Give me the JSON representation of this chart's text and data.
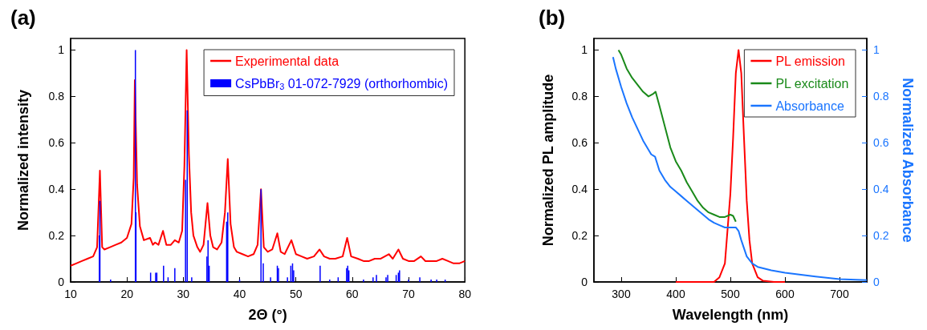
{
  "chart_data": [
    {
      "type": "line",
      "title": "(a)",
      "xlabel": "2Θ (°)",
      "ylabel": "Normalized intensity",
      "xlim": [
        10,
        80
      ],
      "xticks": [
        10,
        20,
        30,
        40,
        50,
        60,
        70,
        80
      ],
      "ylim": [
        0,
        1.05
      ],
      "yticks": [
        0,
        0.2,
        0.4,
        0.6,
        0.8,
        1
      ],
      "legend": "top right",
      "grid": false,
      "marker": "none",
      "series": [
        {
          "name": "Experimental data",
          "color": "#ff0000",
          "x": [
            10,
            11,
            12,
            13,
            14,
            14.7,
            15.2,
            15.6,
            16,
            17,
            18,
            19,
            20,
            20.8,
            21.2,
            21.4,
            21.8,
            22.3,
            23,
            24.1,
            24.6,
            25,
            25.6,
            26.4,
            27,
            27.8,
            28.5,
            29.2,
            29.8,
            30.2,
            30.6,
            31,
            31.4,
            31.8,
            32.5,
            33,
            33.6,
            34.3,
            34.8,
            35.3,
            36,
            36.8,
            37.4,
            37.9,
            38.4,
            39,
            39.5,
            40.5,
            41.5,
            42.5,
            43.2,
            43.8,
            44.3,
            45,
            45.8,
            46.7,
            47.3,
            48,
            49.2,
            50,
            51,
            52,
            53.2,
            54.2,
            55,
            56,
            57,
            58.3,
            59.1,
            59.8,
            61,
            62,
            63,
            64,
            65,
            66.5,
            67.2,
            68.2,
            69,
            70,
            71,
            72.2,
            73,
            74,
            75,
            76,
            77,
            78,
            79,
            80
          ],
          "values": [
            0.07,
            0.08,
            0.09,
            0.1,
            0.11,
            0.15,
            0.48,
            0.15,
            0.14,
            0.15,
            0.16,
            0.17,
            0.19,
            0.25,
            0.45,
            0.87,
            0.42,
            0.24,
            0.18,
            0.19,
            0.16,
            0.17,
            0.16,
            0.22,
            0.16,
            0.16,
            0.18,
            0.17,
            0.22,
            0.5,
            1.0,
            0.55,
            0.3,
            0.2,
            0.15,
            0.13,
            0.16,
            0.34,
            0.2,
            0.15,
            0.14,
            0.17,
            0.3,
            0.53,
            0.25,
            0.15,
            0.13,
            0.12,
            0.11,
            0.12,
            0.16,
            0.4,
            0.15,
            0.13,
            0.14,
            0.21,
            0.13,
            0.12,
            0.18,
            0.12,
            0.11,
            0.1,
            0.11,
            0.14,
            0.11,
            0.1,
            0.1,
            0.11,
            0.19,
            0.11,
            0.1,
            0.09,
            0.09,
            0.1,
            0.1,
            0.12,
            0.1,
            0.14,
            0.1,
            0.09,
            0.09,
            0.11,
            0.09,
            0.09,
            0.09,
            0.1,
            0.09,
            0.08,
            0.08,
            0.09
          ]
        },
        {
          "name": "CsPbBr$_{3}$ 01-072-7929 (orthorhombic)",
          "type": "bar",
          "color": "#0000ff",
          "x": [
            15.1,
            15.2,
            17.1,
            21.5,
            21.6,
            24.2,
            25.1,
            25.3,
            26.5,
            27.3,
            28.5,
            30.4,
            30.7,
            31.5,
            34.2,
            34.4,
            34.6,
            37.7,
            37.9,
            40,
            43.8,
            44.2,
            45.5,
            46.7,
            46.9,
            48.5,
            49.1,
            49.4,
            49.6,
            54.3,
            56,
            57.5,
            59,
            59.2,
            59.4,
            62,
            63.7,
            64.3,
            66,
            66.3,
            67.8,
            68.2,
            68.4,
            70,
            72,
            74,
            75,
            76.5
          ],
          "values": [
            0.2,
            0.35,
            0.01,
            1.0,
            0.3,
            0.04,
            0.04,
            0.04,
            0.07,
            0.02,
            0.06,
            0.44,
            0.74,
            0.02,
            0.11,
            0.18,
            0.07,
            0.26,
            0.3,
            0.01,
            0.4,
            0.08,
            0.02,
            0.07,
            0.06,
            0.02,
            0.07,
            0.08,
            0.05,
            0.07,
            0.01,
            0.02,
            0.06,
            0.07,
            0.05,
            0.01,
            0.02,
            0.03,
            0.02,
            0.03,
            0.03,
            0.04,
            0.05,
            0.01,
            0.02,
            0.01,
            0.01,
            0.01
          ]
        }
      ]
    },
    {
      "type": "line",
      "title": "(b)",
      "xlabel": "Wavelength (nm)",
      "ylabel": "Normalized PL amplitude",
      "y2label": "Normalized Absorbance",
      "xlim": [
        250,
        750
      ],
      "xticks": [
        300,
        400,
        500,
        600,
        700
      ],
      "ylim": [
        0,
        1.05
      ],
      "yticks": [
        0,
        0.2,
        0.4,
        0.6,
        0.8,
        1
      ],
      "y2lim": [
        0,
        1.05
      ],
      "y2ticks": [
        0,
        0.2,
        0.4,
        0.6,
        0.8,
        1
      ],
      "legend": "top right",
      "grid": false,
      "marker": "none",
      "series": [
        {
          "name": "PL emission",
          "color": "#ff0000",
          "x": [
            400,
            470,
            480,
            490,
            500,
            505,
            510,
            515,
            520,
            525,
            530,
            535,
            540,
            550,
            560,
            580,
            600
          ],
          "values": [
            0,
            0,
            0.02,
            0.08,
            0.38,
            0.62,
            0.9,
            1.0,
            0.9,
            0.62,
            0.35,
            0.18,
            0.08,
            0.02,
            0.005,
            0,
            0
          ]
        },
        {
          "name": "PL excitation",
          "color": "#1a8a1a",
          "x": [
            295,
            300,
            310,
            320,
            330,
            340,
            350,
            358,
            363,
            370,
            380,
            390,
            400,
            410,
            420,
            430,
            440,
            450,
            460,
            470,
            480,
            490,
            500,
            505,
            510
          ],
          "values": [
            1.0,
            0.98,
            0.92,
            0.88,
            0.85,
            0.82,
            0.8,
            0.81,
            0.82,
            0.76,
            0.67,
            0.58,
            0.52,
            0.48,
            0.43,
            0.39,
            0.35,
            0.32,
            0.3,
            0.29,
            0.28,
            0.28,
            0.29,
            0.285,
            0.26
          ]
        },
        {
          "name": "Absorbance",
          "color": "#1a75ff",
          "axis": "y2",
          "x": [
            285,
            290,
            300,
            310,
            320,
            330,
            340,
            350,
            355,
            362,
            370,
            380,
            390,
            400,
            410,
            420,
            430,
            440,
            450,
            460,
            470,
            480,
            490,
            500,
            510,
            515,
            520,
            530,
            540,
            550,
            575,
            600,
            650,
            700,
            750
          ],
          "values": [
            0.97,
            0.92,
            0.84,
            0.77,
            0.71,
            0.66,
            0.61,
            0.57,
            0.55,
            0.54,
            0.48,
            0.44,
            0.41,
            0.39,
            0.37,
            0.35,
            0.33,
            0.31,
            0.29,
            0.27,
            0.255,
            0.245,
            0.235,
            0.235,
            0.235,
            0.22,
            0.18,
            0.11,
            0.08,
            0.065,
            0.05,
            0.04,
            0.025,
            0.012,
            0.008
          ]
        }
      ]
    }
  ]
}
